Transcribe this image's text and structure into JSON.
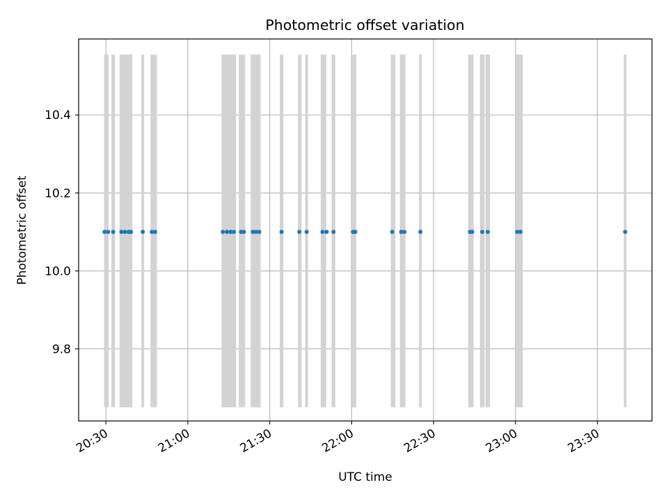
{
  "chart_data": {
    "type": "scatter",
    "title": "Photometric offset variation",
    "xlabel": "UTC time",
    "ylabel": "Photometric offset",
    "x_axis": {
      "kind": "time",
      "range": [
        "20:20",
        "23:50"
      ],
      "ticks": [
        "20:30",
        "21:00",
        "21:30",
        "22:00",
        "22:30",
        "23:00",
        "23:30"
      ]
    },
    "y_axis": {
      "range": [
        9.615,
        10.595
      ],
      "ticks": [
        9.8,
        10.0,
        10.2,
        10.4
      ],
      "tick_labels": [
        "9.8",
        "10.0",
        "10.2",
        "10.4"
      ]
    },
    "grid": true,
    "span_color": "#d3d3d3",
    "point_color": "#1f77b4",
    "span_y_range": [
      9.65,
      10.555
    ],
    "spans": [
      [
        "20:29:20",
        "20:31:00"
      ],
      [
        "20:32:00",
        "20:33:20"
      ],
      [
        "20:35:00",
        "20:39:40"
      ],
      [
        "20:43:00",
        "20:44:00"
      ],
      [
        "20:46:20",
        "20:48:40"
      ],
      [
        "21:12:20",
        "21:17:40"
      ],
      [
        "21:18:40",
        "21:21:00"
      ],
      [
        "21:23:00",
        "21:26:40"
      ],
      [
        "21:33:40",
        "21:35:00"
      ],
      [
        "21:40:20",
        "21:41:40"
      ],
      [
        "21:43:00",
        "21:44:00"
      ],
      [
        "21:48:40",
        "21:50:40"
      ],
      [
        "21:52:40",
        "21:54:00"
      ],
      [
        "21:59:40",
        "22:01:40"
      ],
      [
        "22:14:20",
        "22:16:00"
      ],
      [
        "22:17:40",
        "22:19:40"
      ],
      [
        "22:24:40",
        "22:25:40"
      ],
      [
        "22:42:40",
        "22:44:40"
      ],
      [
        "22:47:00",
        "22:48:40"
      ],
      [
        "22:49:00",
        "22:50:40"
      ],
      [
        "23:00:00",
        "23:02:40"
      ],
      [
        "23:39:40",
        "23:40:40"
      ]
    ],
    "series": [
      {
        "x": [
          "20:29:30",
          "20:30:50",
          "20:32:40",
          "20:35:40",
          "20:37:00",
          "20:38:20",
          "20:39:10",
          "20:43:30",
          "20:46:50",
          "20:48:00",
          "21:12:50",
          "21:14:20",
          "21:15:40",
          "21:16:50",
          "21:19:30",
          "21:20:30",
          "21:23:50",
          "21:25:00",
          "21:26:10",
          "21:34:20",
          "21:40:50",
          "21:43:30",
          "21:49:20",
          "21:50:50",
          "21:53:20",
          "22:00:30",
          "22:01:20",
          "22:14:50",
          "22:18:10",
          "22:19:20",
          "22:25:10",
          "22:43:20",
          "22:44:10",
          "22:47:50",
          "22:49:50",
          "23:00:40",
          "23:01:50",
          "23:40:10"
        ],
        "y": [
          10.1,
          10.1,
          10.1,
          10.1,
          10.1,
          10.1,
          10.1,
          10.1,
          10.1,
          10.1,
          10.1,
          10.1,
          10.1,
          10.1,
          10.1,
          10.1,
          10.1,
          10.1,
          10.1,
          10.1,
          10.1,
          10.1,
          10.1,
          10.1,
          10.1,
          10.1,
          10.1,
          10.1,
          10.1,
          10.1,
          10.1,
          10.1,
          10.1,
          10.1,
          10.1,
          10.1,
          10.1,
          10.1
        ]
      }
    ]
  }
}
